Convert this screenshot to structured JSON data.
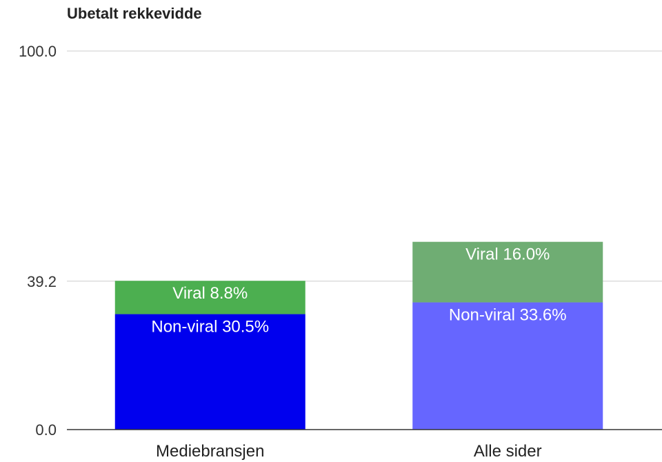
{
  "chart_data": {
    "type": "bar",
    "stacked": true,
    "title": "Ubetalt rekkevidde",
    "categories": [
      "Mediebransjen",
      "Alle sider"
    ],
    "y_ticks": [
      "0.0",
      "39.2",
      "100.0"
    ],
    "ylim": [
      0,
      100
    ],
    "grid": true,
    "legend": "none",
    "series": [
      {
        "name": "Non-viral",
        "values": [
          30.5,
          33.6
        ],
        "labels": [
          "Non-viral 30.5%",
          "Non-viral 33.6%"
        ],
        "colors": [
          "#0000ee",
          "#6666ff"
        ]
      },
      {
        "name": "Viral",
        "values": [
          8.8,
          16.0
        ],
        "labels": [
          "Viral 8.8%",
          "Viral 16.0%"
        ],
        "colors": [
          "#4caf50",
          "#6fad73"
        ]
      }
    ]
  }
}
